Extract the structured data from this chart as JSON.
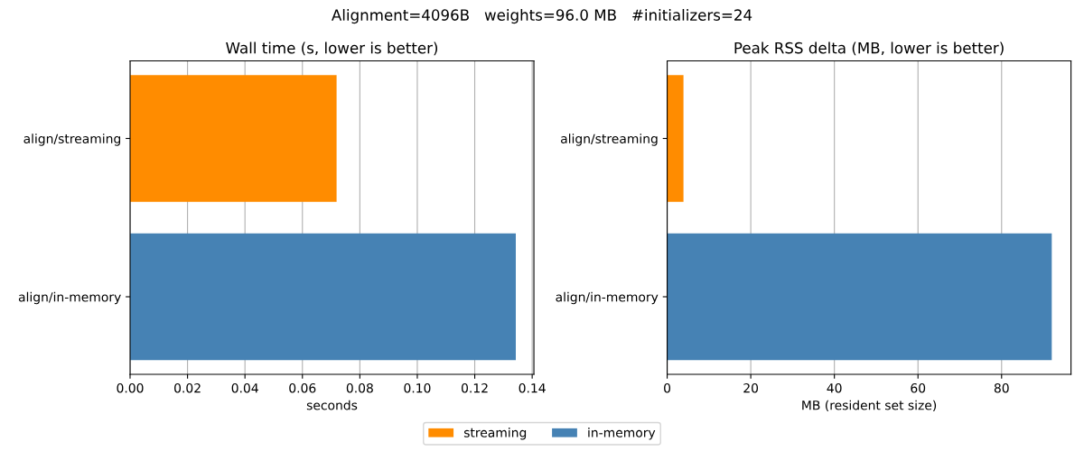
{
  "chart_data": [
    {
      "type": "bar",
      "orientation": "horizontal",
      "title": "Wall time (s, lower is better)",
      "xlabel": "seconds",
      "annotations": [
        "Alignment=4096B   weights=96.0 MB   #initializers=24"
      ],
      "categories": [
        "align/streaming",
        "align/in-memory"
      ],
      "series": [
        {
          "name": "streaming",
          "color": "#ff8c00",
          "values": [
            0.0719,
            null
          ]
        },
        {
          "name": "in-memory",
          "color": "#4682b4",
          "values": [
            null,
            0.1343
          ]
        }
      ],
      "xlim": [
        0,
        0.1406
      ],
      "xticks": [
        {
          "value": 0,
          "label": "0.00"
        },
        {
          "value": 0.02,
          "label": "0.02"
        },
        {
          "value": 0.04,
          "label": "0.04"
        },
        {
          "value": 0.06,
          "label": "0.06"
        },
        {
          "value": 0.08,
          "label": "0.08"
        },
        {
          "value": 0.1,
          "label": "0.10"
        },
        {
          "value": 0.12,
          "label": "0.12"
        },
        {
          "value": 0.14,
          "label": "0.14"
        }
      ],
      "grid": "x",
      "legend": "bottom"
    },
    {
      "type": "bar",
      "orientation": "horizontal",
      "title": "Peak RSS delta (MB, lower is better)",
      "xlabel": "MB (resident set size)",
      "categories": [
        "align/streaming",
        "align/in-memory"
      ],
      "series": [
        {
          "name": "streaming",
          "color": "#ff8c00",
          "values": [
            3.9,
            null
          ]
        },
        {
          "name": "in-memory",
          "color": "#4682b4",
          "values": [
            null,
            92.0
          ]
        }
      ],
      "xlim": [
        0,
        96.6
      ],
      "xticks": [
        0,
        20,
        40,
        60,
        80
      ],
      "grid": "x"
    }
  ]
}
